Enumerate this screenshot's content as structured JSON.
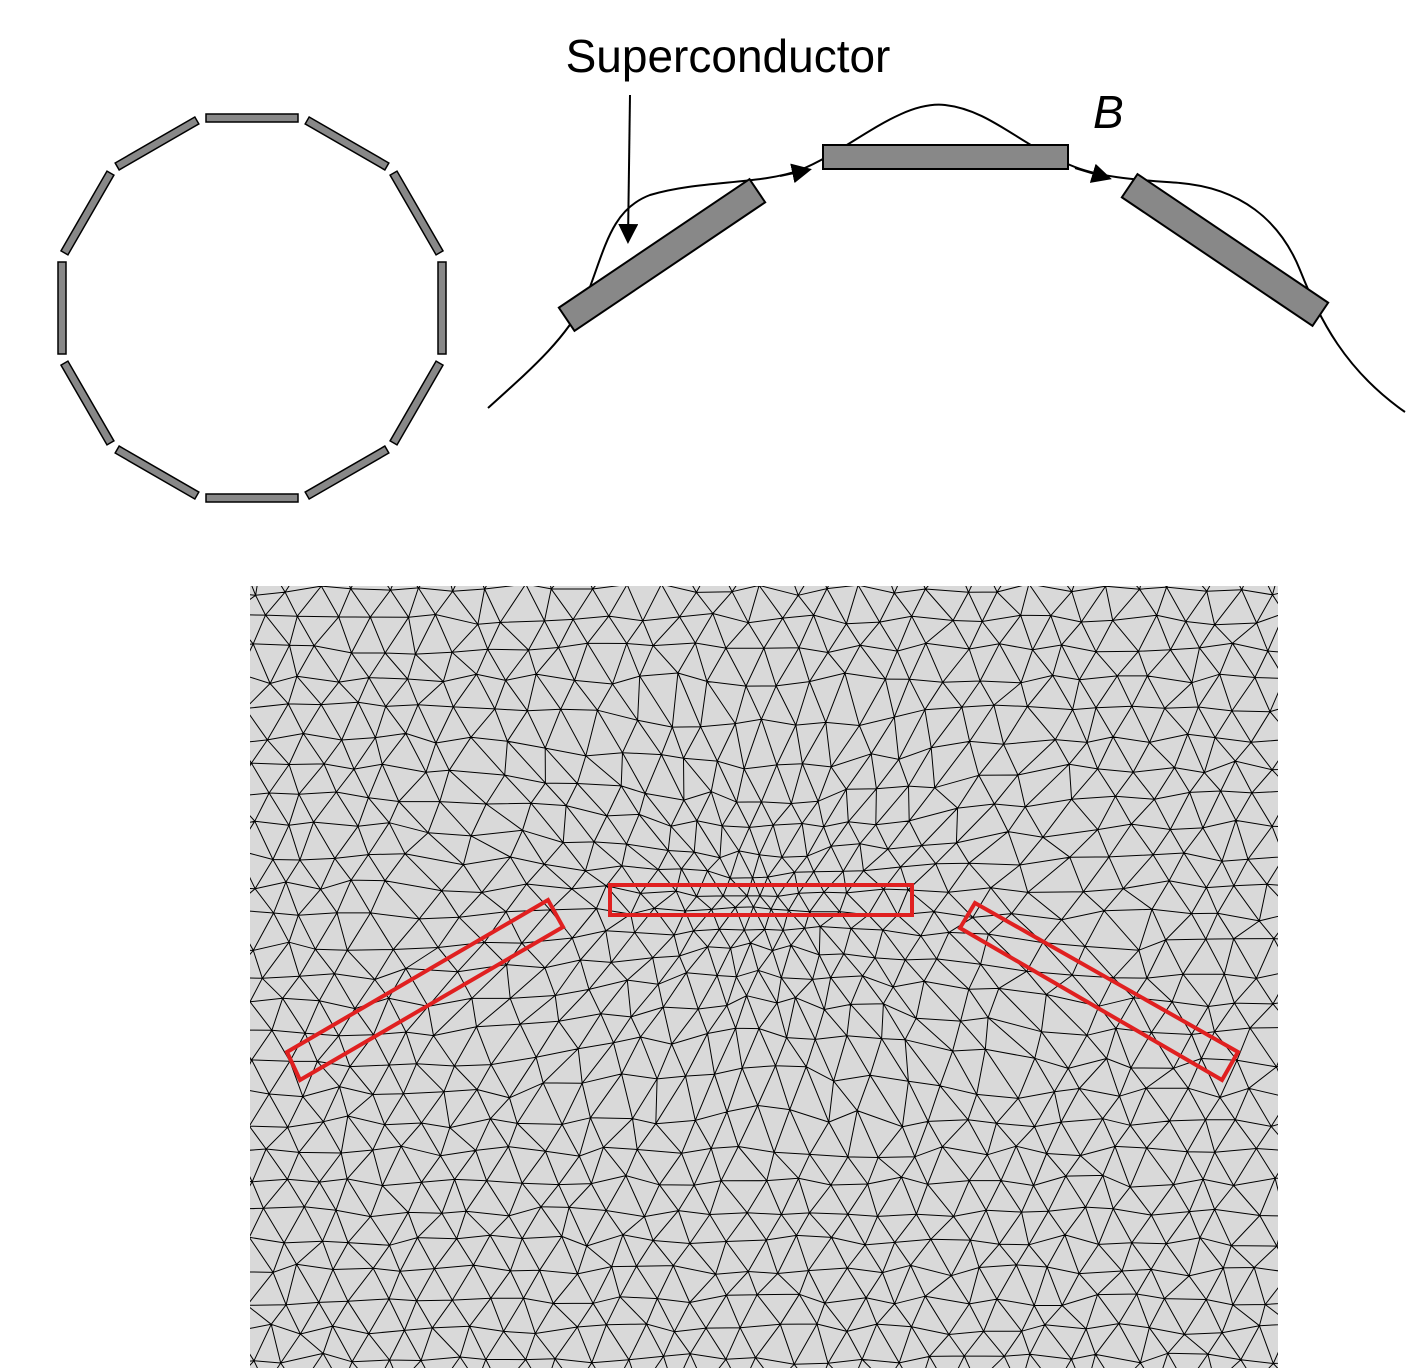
{
  "labels": {
    "superconductor": "Superconductor",
    "field": "B"
  }
}
